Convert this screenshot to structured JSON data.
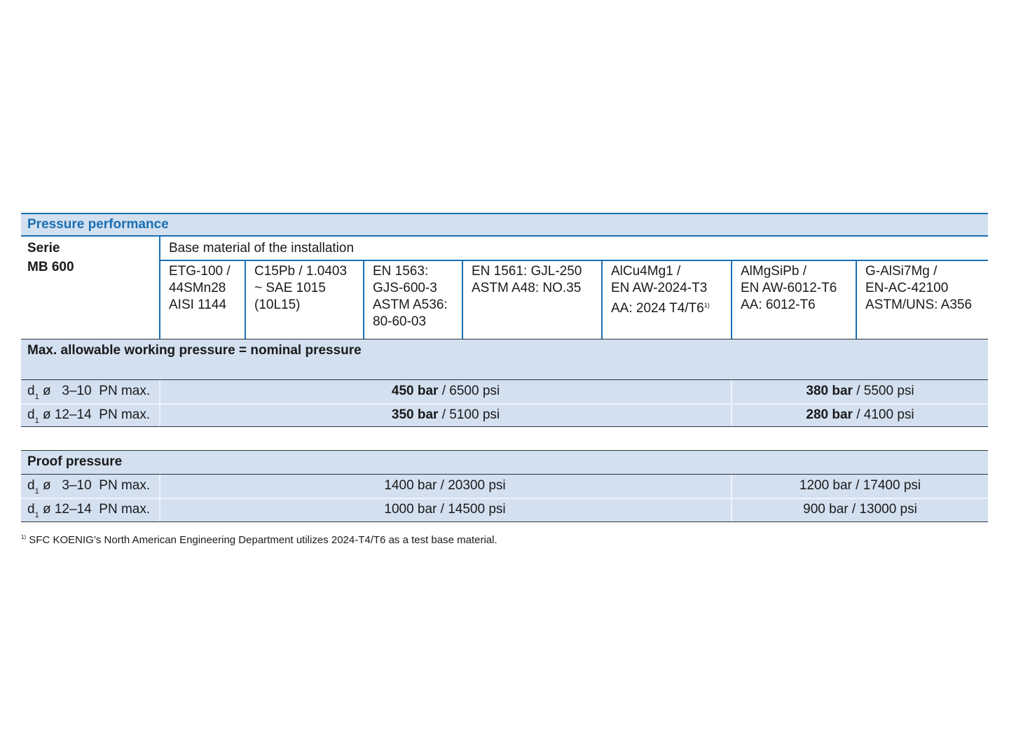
{
  "title": "Pressure performance",
  "serie": {
    "label": "Serie",
    "value": "MB 600"
  },
  "base_material_header": "Base material of the installation",
  "materials": [
    {
      "text": "ETG-100 /\n44SMn28\nAISI 1144"
    },
    {
      "text": "C15Pb / 1.0403\n~ SAE 1015\n(10L15)"
    },
    {
      "text": "EN 1563:\nGJS-600-3\nASTM A536:\n80-60-03"
    },
    {
      "text": "EN 1561: GJL-250\nASTM A48: NO.35"
    },
    {
      "text": "AlCu4Mg1 /\nEN AW-2024-T3\nAA: 2024 T4/T6",
      "footnote_mark": "1)"
    },
    {
      "text": "AlMgSiPb /\nEN AW-6012-T6\nAA: 6012-T6"
    },
    {
      "text": "G-AlSi7Mg /\nEN-AC-42100\nASTM/UNS: A356"
    }
  ],
  "working_pressure": {
    "header": "Max. allowable working pressure = nominal pressure",
    "rows": [
      {
        "d": "d",
        "sub": "1",
        "range": "ø   3–10",
        "pn": "PN max.",
        "steel_bold": "450 bar",
        "steel_rest": " / 6500 psi",
        "alu_bold": "380 bar",
        "alu_rest": " / 5500 psi"
      },
      {
        "d": "d",
        "sub": "1",
        "range": "ø 12–14",
        "pn": "PN max.",
        "steel_bold": "350 bar",
        "steel_rest": " / 5100 psi",
        "alu_bold": "280 bar",
        "alu_rest": " / 4100 psi"
      }
    ]
  },
  "proof_pressure": {
    "header": "Proof pressure",
    "rows": [
      {
        "d": "d",
        "sub": "1",
        "range": "ø   3–10",
        "pn": "PN max.",
        "steel": "1400 bar / 20300 psi",
        "alu": "1200 bar / 17400 psi"
      },
      {
        "d": "d",
        "sub": "1",
        "range": "ø 12–14",
        "pn": "PN max.",
        "steel": "1000 bar / 14500 psi",
        "alu": "900 bar / 13000 psi"
      }
    ]
  },
  "footnote": {
    "mark": "1)",
    "text": "SFC KOENIG’s North American Engineering Department utilizes 2024-T4/T6 as a test base material."
  },
  "colors": {
    "accent": "#1a6fb3",
    "band": "#d3e0f0",
    "rule": "#2a3440"
  }
}
